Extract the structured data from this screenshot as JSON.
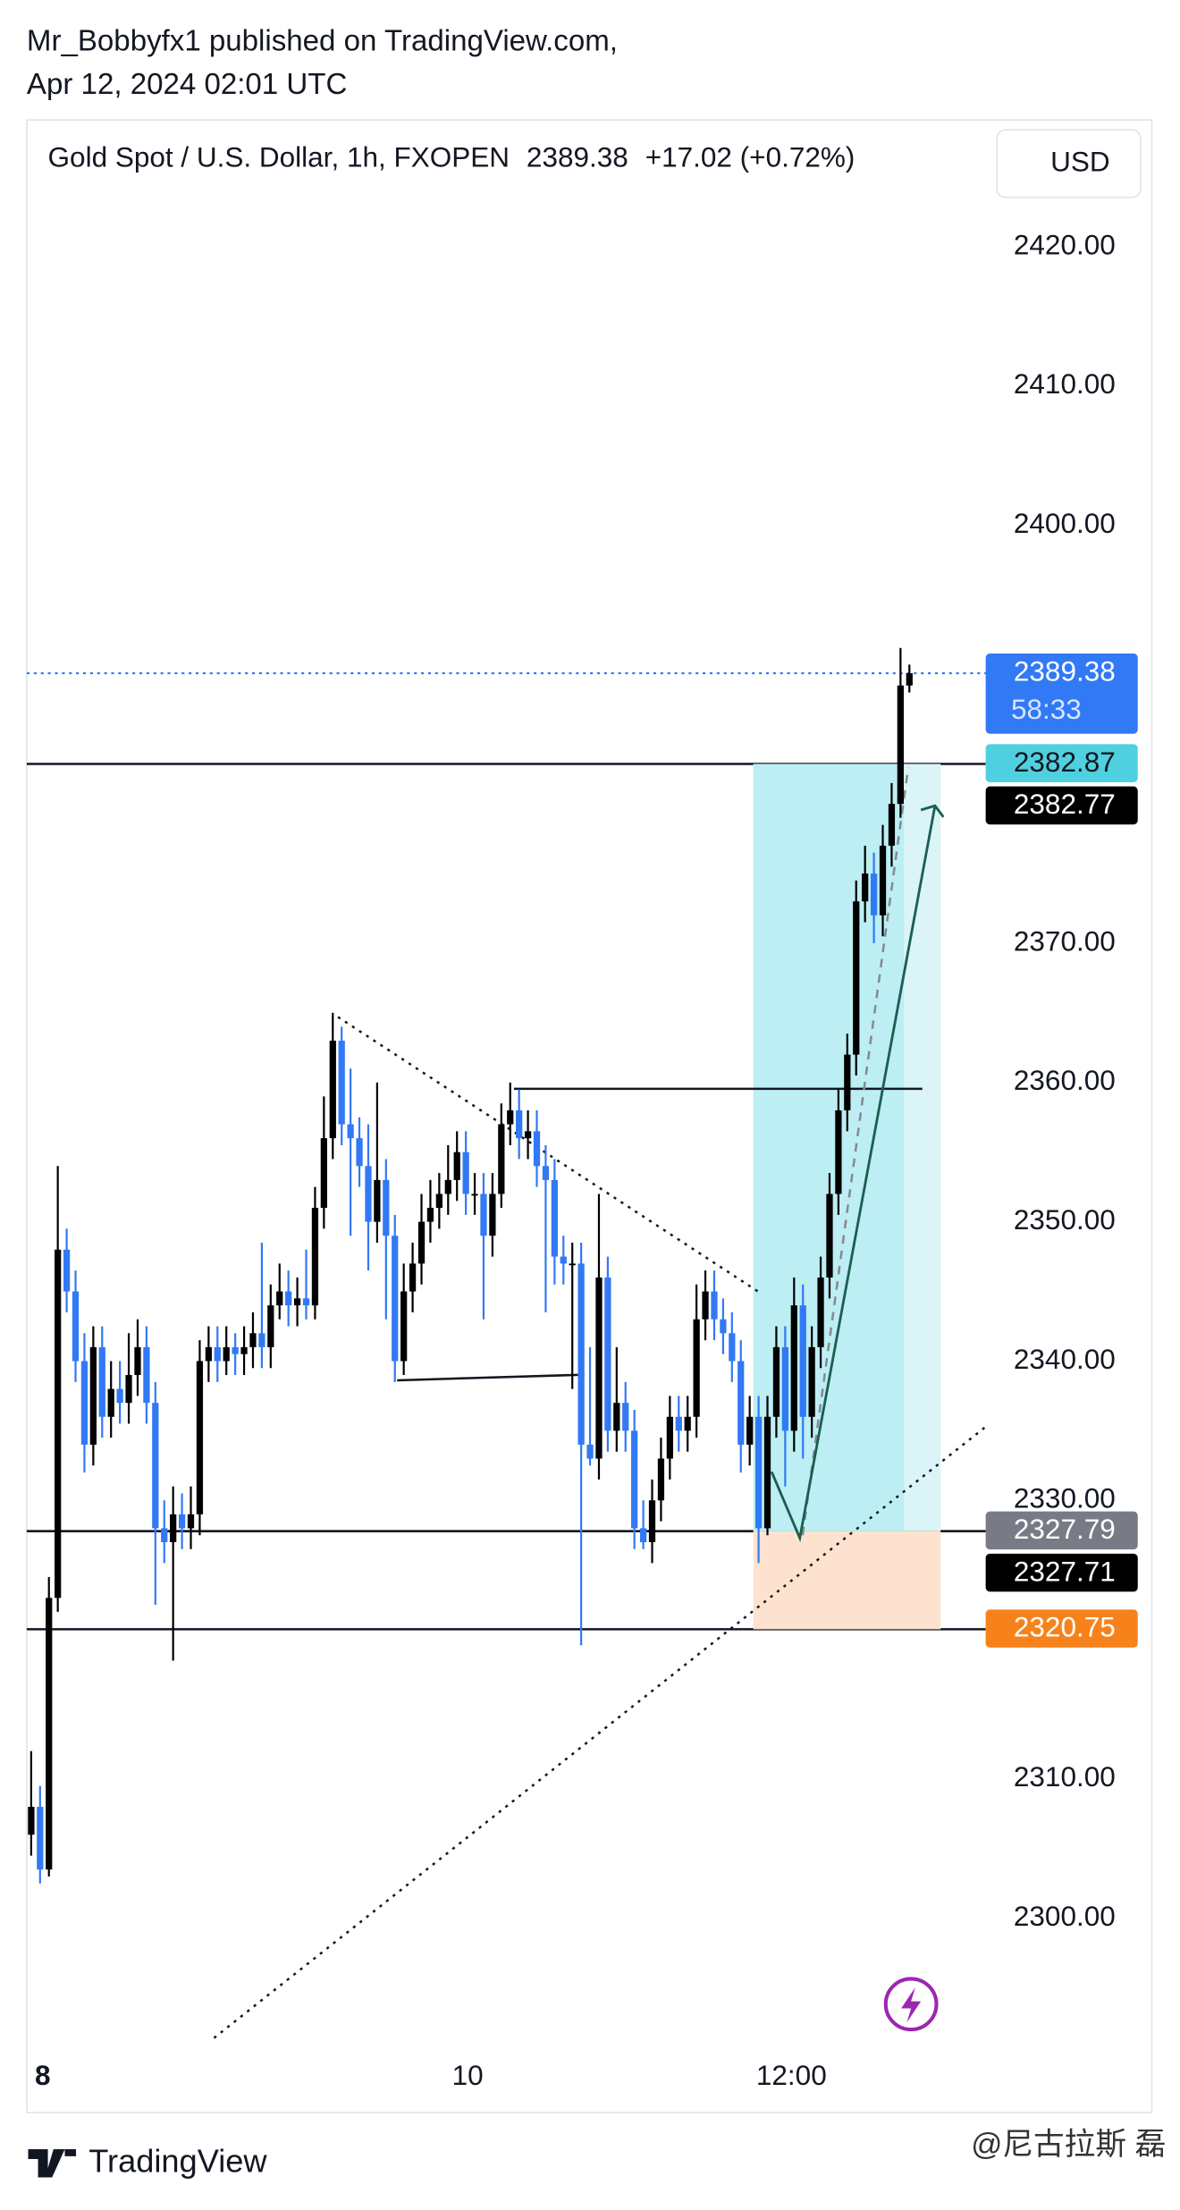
{
  "chart_data": {
    "type": "candlestick",
    "publisher": "Mr_Bobbyfx1 published on TradingView.com,",
    "published": "Apr 12, 2024 02:01 UTC",
    "title": "Gold Spot / U.S. Dollar, 1h, FXOPEN",
    "change": "+17.02 (+0.72%)",
    "currency": "USD",
    "brand": "TradingView",
    "watermark": "@尼古拉斯 磊",
    "up_color": "#000000",
    "down_color": "#3179f5",
    "open": [
      2306,
      2308,
      2303.5,
      2323,
      2348,
      2345,
      2340,
      2334,
      2341,
      2336,
      2338,
      2337,
      2339,
      2341,
      2337,
      2328,
      2327,
      2329,
      2328,
      2329,
      2340,
      2341,
      2340,
      2341,
      2340.5,
      2341,
      2342,
      2341,
      2344,
      2345,
      2344,
      2344.5,
      2344,
      2351,
      2356,
      2363,
      2357,
      2356,
      2354,
      2350,
      2353,
      2349,
      2340,
      2345,
      2347,
      2350,
      2351,
      2352,
      2353,
      2355,
      2352,
      2352,
      2349,
      2352,
      2357,
      2358,
      2356,
      2356.5,
      2354,
      2353,
      2347.5,
      2347,
      2347,
      2334,
      2333,
      2346,
      2335,
      2337,
      2335,
      2328,
      2327,
      2330,
      2333,
      2336,
      2335,
      2336,
      2343,
      2345,
      2343,
      2342,
      2340,
      2334,
      2336,
      2328,
      2336,
      2341,
      2335,
      2344,
      2336,
      2341,
      2346,
      2352,
      2358,
      2362,
      2373,
      2375,
      2372,
      2377,
      2380,
      2388.5
    ],
    "high": [
      2312,
      2309.5,
      2324.5,
      2354,
      2349.5,
      2346.5,
      2342,
      2342.5,
      2342.5,
      2340,
      2340,
      2342,
      2343,
      2342.5,
      2338.5,
      2330,
      2331,
      2330.5,
      2331,
      2341.5,
      2342.5,
      2342.5,
      2342.5,
      2342,
      2342.5,
      2343.5,
      2348.5,
      2345.5,
      2347,
      2346.5,
      2346,
      2348,
      2352.5,
      2359,
      2365,
      2364,
      2361,
      2357.5,
      2357,
      2360,
      2354.5,
      2350.5,
      2347,
      2348.5,
      2352,
      2353,
      2353.5,
      2355.5,
      2356.5,
      2356.5,
      2353.5,
      2353.5,
      2353.5,
      2358.5,
      2360,
      2359.5,
      2358,
      2358,
      2355.5,
      2354.5,
      2349,
      2348.5,
      2348.5,
      2341,
      2352,
      2347.5,
      2341,
      2338.5,
      2336.5,
      2330,
      2331.5,
      2334.5,
      2337.5,
      2337.5,
      2337.5,
      2345.5,
      2346.5,
      2346.5,
      2344.5,
      2343.5,
      2341.5,
      2337.5,
      2337.5,
      2337.5,
      2342.5,
      2342.5,
      2346,
      2345.5,
      2342.5,
      2347.5,
      2353.5,
      2359.5,
      2363.5,
      2374.5,
      2377,
      2376.5,
      2378.5,
      2381.5,
      2391.2,
      2390
    ],
    "low": [
      2304.5,
      2302.5,
      2303,
      2322,
      2343.5,
      2338.5,
      2332,
      2332.5,
      2334.5,
      2334.5,
      2335.5,
      2335.5,
      2337.5,
      2335.5,
      2322.5,
      2325.5,
      2318.5,
      2326.5,
      2326.5,
      2327.5,
      2338.5,
      2338.5,
      2339,
      2339,
      2339,
      2339.5,
      2339.5,
      2339.5,
      2343,
      2342.5,
      2342.5,
      2343,
      2343,
      2349.5,
      2354.5,
      2355.5,
      2349,
      2352.5,
      2346.5,
      2348.5,
      2343,
      2338.5,
      2339,
      2343.5,
      2345.5,
      2348.5,
      2349.5,
      2350.5,
      2351.5,
      2350.5,
      2350.5,
      2343,
      2347.5,
      2351,
      2355.5,
      2354.5,
      2354.5,
      2352.5,
      2343.5,
      2345.5,
      2345.5,
      2338,
      2319.6,
      2332.5,
      2331.5,
      2333.5,
      2333.5,
      2333.5,
      2326.5,
      2326.5,
      2325.5,
      2328.5,
      2331.5,
      2333.5,
      2333.5,
      2334.5,
      2341.5,
      2341.5,
      2340.5,
      2338.5,
      2332,
      2332.5,
      2325.5,
      2327.5,
      2334.5,
      2331,
      2333.5,
      2333,
      2334.5,
      2339.5,
      2344.5,
      2350.5,
      2356.5,
      2360.5,
      2371.5,
      2370,
      2370.5,
      2375.5,
      2379,
      2388
    ],
    "close": [
      2308,
      2303.5,
      2323,
      2348,
      2345,
      2340,
      2334,
      2341,
      2336,
      2338,
      2337,
      2339,
      2341,
      2337,
      2328,
      2327,
      2329,
      2328,
      2329,
      2340,
      2341,
      2340,
      2341,
      2340.5,
      2341,
      2342,
      2341,
      2344,
      2345,
      2344,
      2344.5,
      2344,
      2351,
      2356,
      2363,
      2357,
      2356,
      2354,
      2350,
      2353,
      2349,
      2340,
      2345,
      2347,
      2350,
      2351,
      2352,
      2353,
      2355,
      2352,
      2352,
      2349,
      2352,
      2357,
      2358,
      2356,
      2356.5,
      2354,
      2353,
      2347.5,
      2347,
      2347,
      2334,
      2333,
      2346,
      2335,
      2337,
      2335,
      2328,
      2327,
      2330,
      2333,
      2336,
      2335,
      2336,
      2343,
      2345,
      2343,
      2342,
      2340,
      2334,
      2336,
      2328,
      2336,
      2341,
      2335,
      2344,
      2336,
      2341,
      2346,
      2352,
      2358,
      2362,
      2373,
      2375,
      2372,
      2377,
      2380,
      2388.5,
      2389.38
    ],
    "xlim": [
      -0.5,
      107.6
    ],
    "xticks": [
      {
        "value": 1.3,
        "label": "8"
      },
      {
        "value": 49.2,
        "label": "10"
      },
      {
        "value": 85.7,
        "label": "12:00"
      }
    ],
    "ylim": [
      2290.6,
      2429.1
    ],
    "yticks": [
      {
        "value": 2420,
        "label": "2420.00"
      },
      {
        "value": 2410,
        "label": "2410.00"
      },
      {
        "value": 2400,
        "label": "2400.00"
      },
      {
        "value": 2370,
        "label": "2370.00"
      },
      {
        "value": 2360,
        "label": "2360.00"
      },
      {
        "value": 2350,
        "label": "2350.00"
      },
      {
        "value": 2340,
        "label": "2340.00"
      },
      {
        "value": 2330,
        "label": "2330.00"
      },
      {
        "value": 2310,
        "label": "2310.00"
      },
      {
        "value": 2300,
        "label": "2300.00"
      }
    ],
    "price_labels": [
      2389.38,
      2382.87,
      2382.77,
      2327.79,
      2327.71,
      2320.75
    ],
    "price_label_colors": [
      "#3179f5",
      "#4fd0e0",
      "#000000",
      "#787b86",
      "#000000",
      "#f7821b"
    ],
    "price_line_styles": [
      "dotted",
      "solid",
      "none",
      "solid",
      "none",
      "solid"
    ],
    "countdown": "58:33"
  }
}
